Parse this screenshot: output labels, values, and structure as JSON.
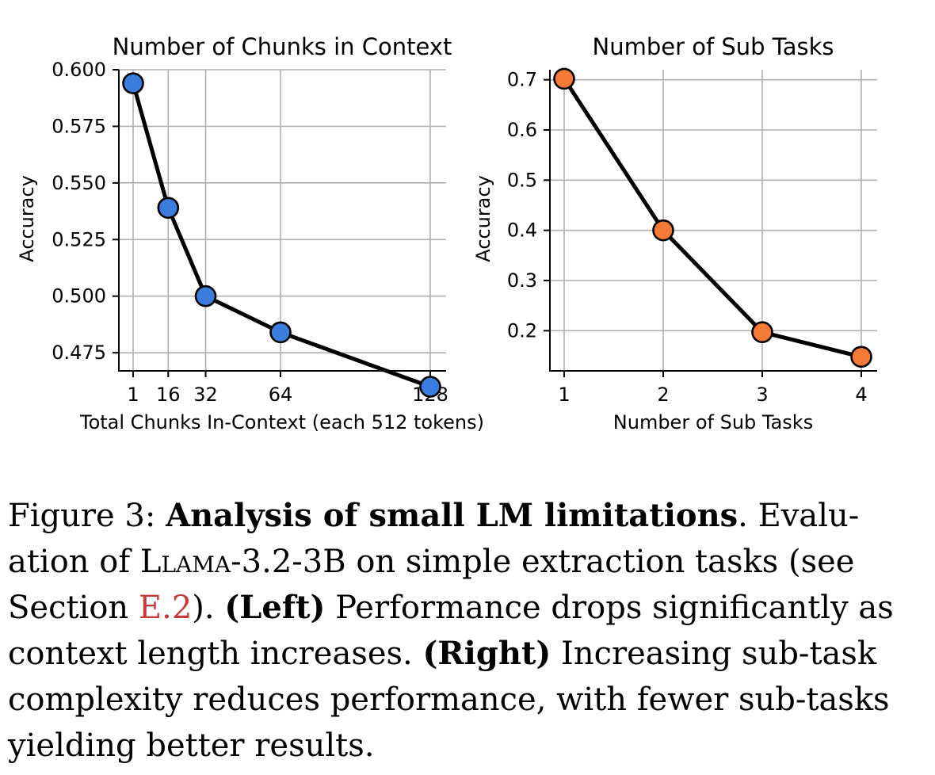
{
  "chart_data": [
    {
      "type": "line",
      "title": "Number of Chunks in Context",
      "xlabel": "Total Chunks In-Context (each 512 tokens)",
      "ylabel": "Accuracy",
      "x": [
        1,
        16,
        32,
        64,
        128
      ],
      "x_ticks": [
        "1",
        "16",
        "32",
        "64",
        "128"
      ],
      "y_ticks": [
        "0.600",
        "0.575",
        "0.550",
        "0.525",
        "0.500",
        "0.475"
      ],
      "ylim": [
        0.467,
        0.6
      ],
      "series": [
        {
          "values": [
            0.594,
            0.539,
            0.5,
            0.484,
            0.46
          ]
        }
      ],
      "marker_color": "#3b7ddd",
      "grid": true
    },
    {
      "type": "line",
      "title": "Number of Sub Tasks",
      "xlabel": "Number of Sub Tasks",
      "ylabel": "Accuracy",
      "x": [
        1,
        2,
        3,
        4
      ],
      "x_ticks": [
        "1",
        "2",
        "3",
        "4"
      ],
      "y_ticks": [
        "0.7",
        "0.6",
        "0.5",
        "0.4",
        "0.3",
        "0.2"
      ],
      "ylim": [
        0.12,
        0.72
      ],
      "series": [
        {
          "values": [
            0.702,
            0.4,
            0.197,
            0.148
          ]
        }
      ],
      "marker_color": "#f57a36",
      "grid": true
    }
  ],
  "caption": {
    "line1_prefix": "Figure 3:  ",
    "line1_bold": "Analysis of small LM limitations",
    "line1_suffix": ". Evalu-",
    "line2_prefix": "ation of ",
    "line2_model": "Llama",
    "line2_suffix": "-3.2-3B on simple extraction tasks (see",
    "line3_prefix": "Section ",
    "line3_ref": "E.2",
    "line3_mid": ").  ",
    "line3_bold": "(Left)",
    "line3_suffix": " Performance drops significantly as",
    "line4_prefix": "context length increases.  ",
    "line4_bold": "(Right)",
    "line4_suffix": " Increasing sub-task",
    "line5": "complexity reduces performance, with fewer sub-tasks",
    "line6": "yielding better results."
  }
}
